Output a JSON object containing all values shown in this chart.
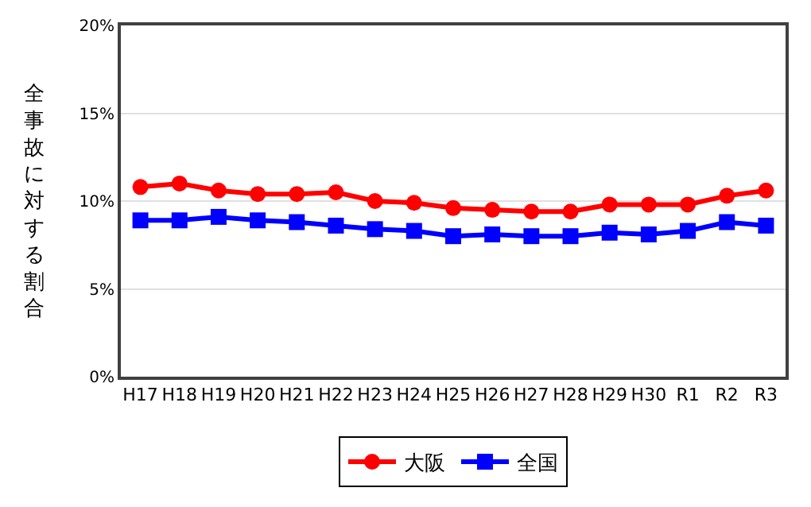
{
  "chart_data": {
    "type": "line",
    "ylabel": "全事故に対する割合",
    "categories": [
      "H17",
      "H18",
      "H19",
      "H20",
      "H21",
      "H22",
      "H23",
      "H24",
      "H25",
      "H26",
      "H27",
      "H28",
      "H29",
      "H30",
      "R1",
      "R2",
      "R3"
    ],
    "series": [
      {
        "name": "大阪",
        "color": "#ff0000",
        "marker": "circle",
        "values": [
          10.8,
          11.0,
          10.6,
          10.4,
          10.4,
          10.5,
          10.0,
          9.9,
          9.6,
          9.5,
          9.4,
          9.4,
          9.8,
          9.8,
          9.8,
          10.3,
          10.6
        ]
      },
      {
        "name": "全国",
        "color": "#0000ff",
        "marker": "square",
        "values": [
          8.9,
          8.9,
          9.1,
          8.9,
          8.8,
          8.6,
          8.4,
          8.3,
          8.0,
          8.1,
          8.0,
          8.0,
          8.2,
          8.1,
          8.3,
          8.8,
          8.6
        ]
      }
    ],
    "ylim": [
      0,
      20
    ],
    "yticks": [
      {
        "value": 0,
        "label": "0%"
      },
      {
        "value": 5,
        "label": "5%"
      },
      {
        "value": 10,
        "label": "10%"
      },
      {
        "value": 15,
        "label": "15%"
      },
      {
        "value": 20,
        "label": "20%"
      }
    ],
    "grid": "y",
    "legend": "bottom",
    "line_style": "solid"
  }
}
